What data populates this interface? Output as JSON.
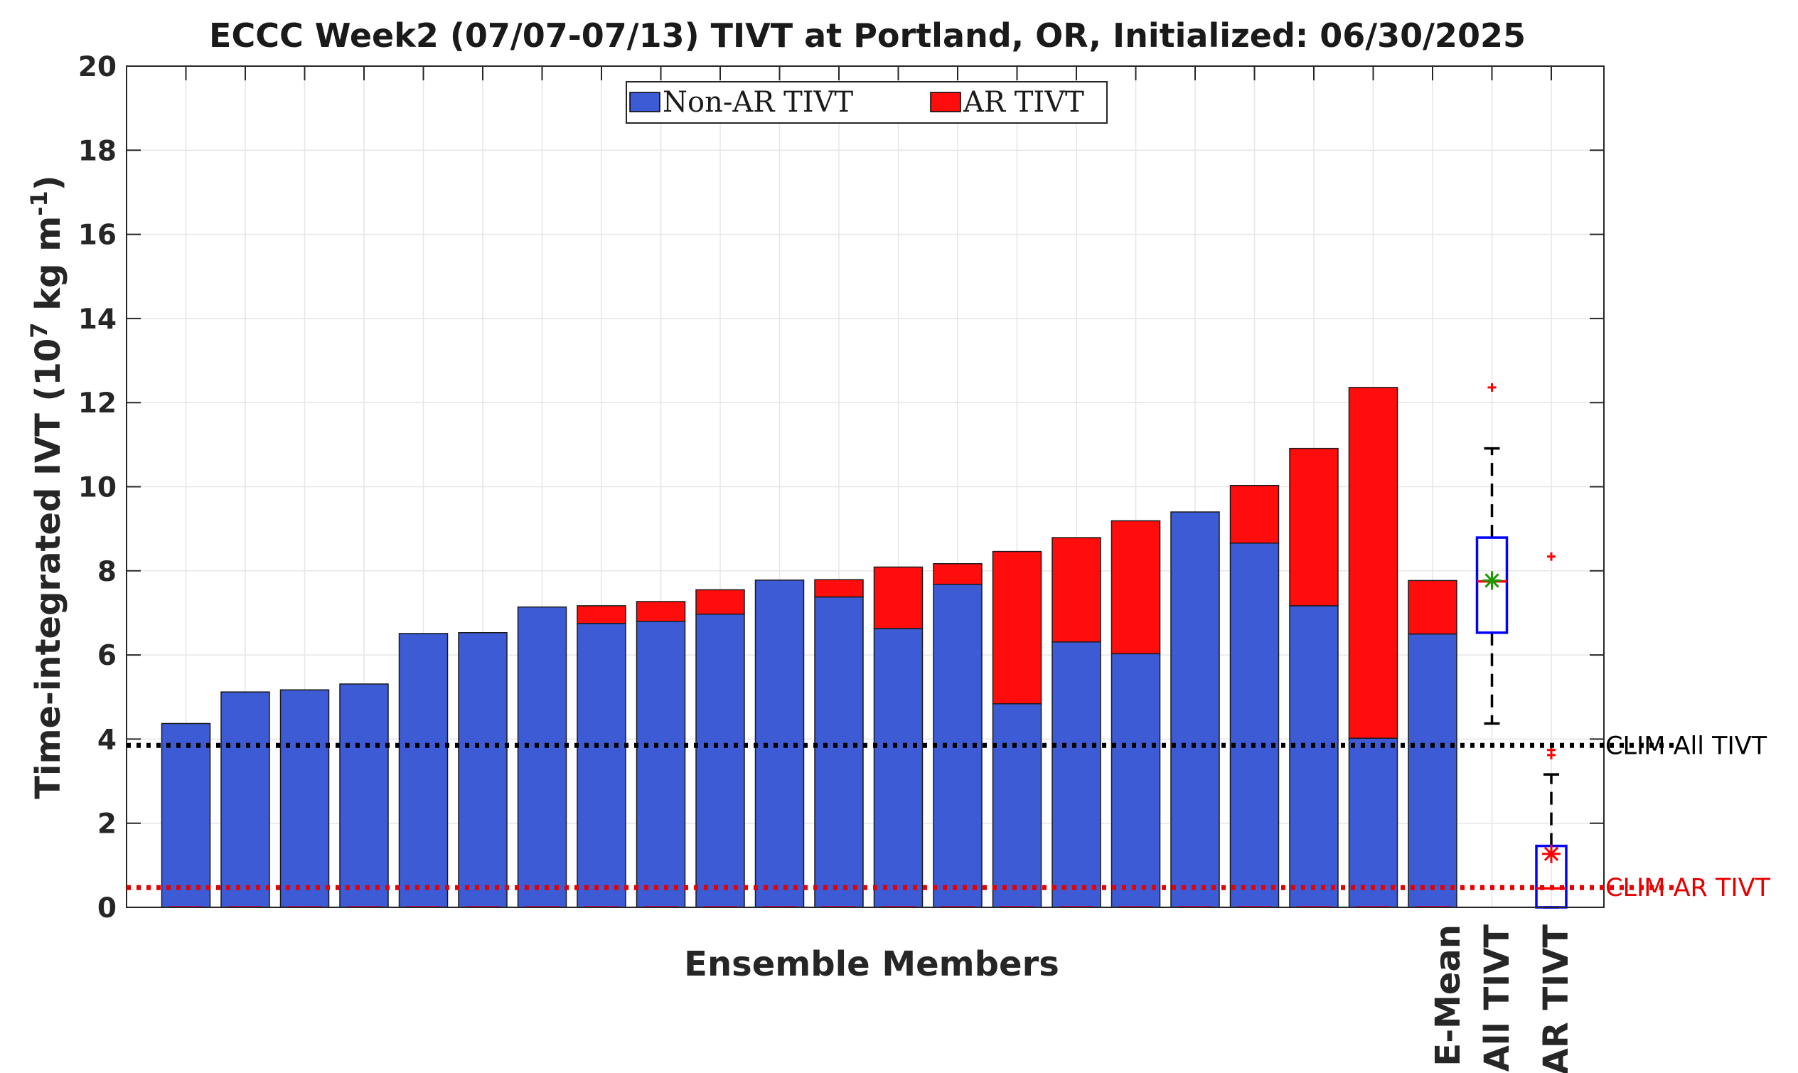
{
  "chart_data": {
    "type": "bar",
    "title": "ECCC Week2 (07/07-07/13) TIVT at Portland, OR, Initialized: 06/30/2025",
    "xlabel": "Ensemble Members",
    "ylabel": {
      "main": "Time-integrated IVT (10",
      "exp1": "7",
      "mid": " kg m",
      "exp2": "-1",
      "end": ")"
    },
    "ylim": [
      0,
      20
    ],
    "yticks": [
      "0",
      "2",
      "4",
      "6",
      "8",
      "10",
      "12",
      "14",
      "16",
      "18",
      "20"
    ],
    "grid": true,
    "stacked": true,
    "legend_position": "top-center",
    "series": [
      {
        "name": "Non-AR TIVT",
        "color": "#3d5bd4",
        "values": [
          4.37,
          5.12,
          5.17,
          5.31,
          6.51,
          6.53,
          7.14,
          6.75,
          6.8,
          6.97,
          7.78,
          7.38,
          6.63,
          7.68,
          4.84,
          6.31,
          6.03,
          9.4,
          8.66,
          7.17,
          4.02,
          6.5
        ]
      },
      {
        "name": "AR TIVT",
        "color": "#ff0d0d",
        "values": [
          0,
          0,
          0,
          0,
          0,
          0,
          0,
          0.42,
          0.47,
          0.58,
          0,
          0.41,
          1.46,
          0.49,
          3.62,
          2.48,
          3.16,
          0,
          1.37,
          3.74,
          8.34,
          1.27
        ]
      }
    ],
    "category_labels": {
      "e_mean": "E-Mean",
      "all_tivt": "All TIVT",
      "ar_tivt": "AR TIVT"
    },
    "boxplots": [
      {
        "name": "All TIVT",
        "whisker_low": 4.37,
        "q1": 6.53,
        "median": 7.75,
        "q3": 8.79,
        "whisker_high": 10.91,
        "mean": 7.77,
        "outliers": [
          12.36
        ],
        "box_color": "#0000ff",
        "mean_color": "#1a9900"
      },
      {
        "name": "AR TIVT",
        "whisker_low": 0,
        "q1": 0,
        "median": 0.45,
        "q3": 1.46,
        "whisker_high": 3.16,
        "mean": 1.27,
        "outliers": [
          3.62,
          3.74,
          8.34
        ],
        "box_color": "#0000ff",
        "mean_color": "#ff0000"
      }
    ],
    "reference_lines": [
      {
        "label": "CLIM All TIVT",
        "value": 3.85,
        "color": "#000000"
      },
      {
        "label": "CLIM AR TIVT",
        "value": 0.47,
        "color": "#e60000"
      }
    ]
  }
}
